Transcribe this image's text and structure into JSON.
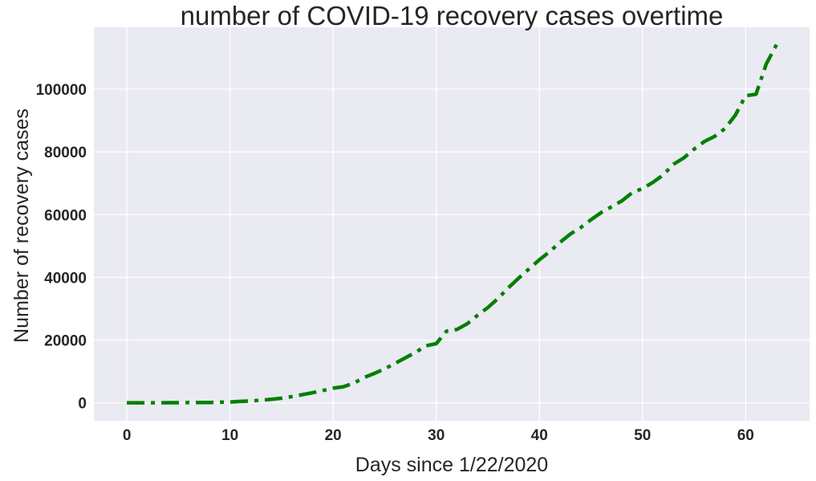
{
  "chart_data": {
    "type": "line",
    "title": "number of COVID-19 recovery cases overtime",
    "xlabel": "Days since 1/22/2020",
    "ylabel": "Number of recovery cases",
    "xlim": [
      -3.2,
      66.2
    ],
    "ylim": [
      -5700,
      119700
    ],
    "xticks": [
      0,
      10,
      20,
      30,
      40,
      50,
      60
    ],
    "yticks": [
      0,
      20000,
      40000,
      60000,
      80000,
      100000
    ],
    "grid": true,
    "background": "#eaeaf2",
    "series": [
      {
        "color": "#008000",
        "line_style": "dash-dot",
        "x": [
          0,
          1,
          2,
          3,
          4,
          5,
          6,
          7,
          8,
          9,
          10,
          11,
          12,
          13,
          14,
          15,
          16,
          17,
          18,
          19,
          20,
          21,
          22,
          23,
          24,
          25,
          26,
          27,
          28,
          29,
          30,
          31,
          32,
          33,
          34,
          35,
          36,
          37,
          38,
          39,
          40,
          41,
          42,
          43,
          44,
          45,
          46,
          47,
          48,
          49,
          50,
          51,
          52,
          53,
          54,
          55,
          56,
          57,
          58,
          59,
          60,
          61,
          62,
          63
        ],
        "y": [
          28,
          30,
          36,
          39,
          52,
          61,
          107,
          126,
          143,
          222,
          284,
          472,
          623,
          852,
          1124,
          1487,
          2011,
          2616,
          3244,
          3946,
          4683,
          5150,
          6295,
          8058,
          9395,
          10865,
          12583,
          14352,
          16121,
          18177,
          18890,
          22886,
          23394,
          25227,
          27905,
          30384,
          33277,
          36711,
          39782,
          42716,
          45602,
          48228,
          51170,
          53796,
          55865,
          58358,
          60694,
          62494,
          64404,
          67003,
          68324,
          70251,
          72624,
          76034,
          78088,
          80840,
          83312,
          84975,
          87420,
          91692,
          97899,
          98351,
          108000,
          114218
        ]
      }
    ]
  }
}
